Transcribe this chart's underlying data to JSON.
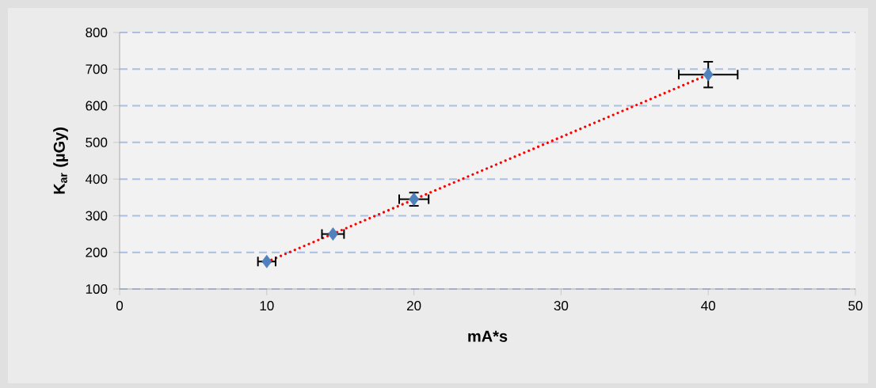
{
  "chart_data": {
    "type": "scatter",
    "xlabel": "mA*s",
    "ylabel": "K$_{ar}$ (µGy)",
    "xlim": [
      0,
      50
    ],
    "ylim": [
      100,
      800
    ],
    "xticks": [
      0,
      10,
      20,
      30,
      40,
      50
    ],
    "yticks": [
      100,
      200,
      300,
      400,
      500,
      600,
      700,
      800
    ],
    "grid": "y",
    "series": [
      {
        "color": "#4f81bd",
        "marker": "diamond",
        "x": [
          10,
          14.5,
          20,
          40
        ],
        "values": [
          175,
          250,
          345,
          685
        ],
        "errors": [
          null,
          null,
          18,
          35
        ],
        "xerrors": [
          0.6,
          0.75,
          1,
          2
        ]
      },
      {
        "type": "line",
        "color": "#ff0000",
        "line_style": "dotted",
        "marker": "none",
        "x": [
          10,
          40
        ],
        "values": [
          174,
          685
        ]
      }
    ]
  }
}
